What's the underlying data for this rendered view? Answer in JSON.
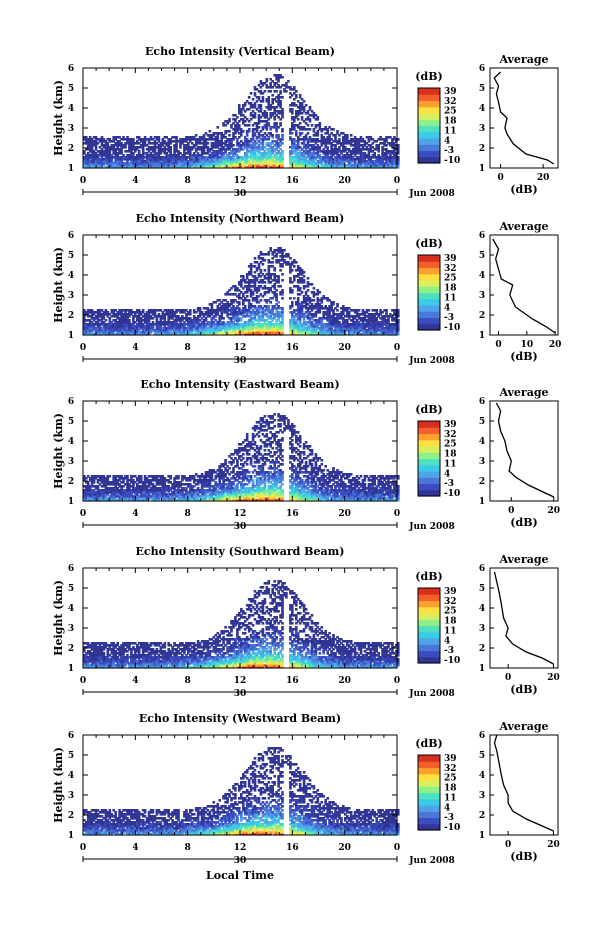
{
  "chart_data": [
    {
      "type": "heatmap",
      "title": "Echo Intensity (Vertical Beam)",
      "ylabel": "Height (km)",
      "ylim": [
        1,
        6
      ],
      "yticks": [
        "1",
        "2",
        "3",
        "4",
        "5",
        "6"
      ],
      "xlim": [
        0,
        24
      ],
      "xticks": [
        "0",
        "4",
        "8",
        "12",
        "16",
        "20",
        "0"
      ],
      "date_day": "30",
      "date_month": "Jun 2008",
      "colorbar_label": "(dB)",
      "colorbar_ticks": [
        "-10",
        "-3",
        "4",
        "11",
        "18",
        "25",
        "32",
        "39"
      ],
      "profile": {
        "title": "Average",
        "xlabel": "(dB)",
        "xticks": [
          "0",
          "20"
        ],
        "xlim": [
          -5,
          27
        ],
        "points": [
          [
            25,
            1.2
          ],
          [
            22,
            1.4
          ],
          [
            12,
            1.7
          ],
          [
            6,
            2.2
          ],
          [
            3,
            2.7
          ],
          [
            2,
            3.0
          ],
          [
            3,
            3.5
          ],
          [
            0,
            3.8
          ],
          [
            -1,
            4.3
          ],
          [
            -2,
            4.7
          ],
          [
            -1,
            5.1
          ],
          [
            -3,
            5.5
          ],
          [
            0,
            5.8
          ]
        ]
      }
    },
    {
      "type": "heatmap",
      "title": "Echo Intensity (Northward Beam)",
      "ylabel": "Height (km)",
      "ylim": [
        1,
        6
      ],
      "yticks": [
        "1",
        "2",
        "3",
        "4",
        "5",
        "6"
      ],
      "xlim": [
        0,
        24
      ],
      "xticks": [
        "0",
        "4",
        "8",
        "12",
        "16",
        "20",
        "0"
      ],
      "date_day": "30",
      "date_month": "Jun 2008",
      "colorbar_label": "(dB)",
      "colorbar_ticks": [
        "-10",
        "-3",
        "4",
        "11",
        "18",
        "25",
        "32",
        "39"
      ],
      "profile": {
        "title": "Average",
        "xlabel": "(dB)",
        "xticks": [
          "0",
          "10",
          "20"
        ],
        "xlim": [
          -3,
          21
        ],
        "points": [
          [
            20,
            1.1
          ],
          [
            17,
            1.4
          ],
          [
            12,
            1.8
          ],
          [
            6,
            2.4
          ],
          [
            4,
            3.0
          ],
          [
            5,
            3.5
          ],
          [
            1,
            3.8
          ],
          [
            0,
            4.3
          ],
          [
            -1,
            4.8
          ],
          [
            0,
            5.3
          ],
          [
            -2,
            5.8
          ]
        ]
      }
    },
    {
      "type": "heatmap",
      "title": "Echo Intensity (Eastward Beam)",
      "ylabel": "Height (km)",
      "ylim": [
        1,
        6
      ],
      "yticks": [
        "1",
        "2",
        "3",
        "4",
        "5",
        "6"
      ],
      "xlim": [
        0,
        24
      ],
      "xticks": [
        "0",
        "4",
        "8",
        "12",
        "16",
        "20",
        "0"
      ],
      "date_day": "30",
      "date_month": "Jun 2008",
      "colorbar_label": "(dB)",
      "colorbar_ticks": [
        "-10",
        "-3",
        "4",
        "11",
        "18",
        "25",
        "32",
        "39"
      ],
      "profile": {
        "title": "Average",
        "xlabel": "(dB)",
        "xticks": [
          "0",
          "20"
        ],
        "xlim": [
          -10,
          22
        ],
        "points": [
          [
            20,
            1.2
          ],
          [
            14,
            1.5
          ],
          [
            8,
            1.8
          ],
          [
            2,
            2.2
          ],
          [
            -1,
            2.5
          ],
          [
            0,
            3.0
          ],
          [
            -2,
            3.5
          ],
          [
            -3,
            4.0
          ],
          [
            -5,
            4.5
          ],
          [
            -6,
            5.0
          ],
          [
            -5,
            5.5
          ],
          [
            -7,
            5.9
          ]
        ]
      }
    },
    {
      "type": "heatmap",
      "title": "Echo Intensity (Southward Beam)",
      "ylabel": "Height (km)",
      "ylim": [
        1,
        6
      ],
      "yticks": [
        "1",
        "2",
        "3",
        "4",
        "5",
        "6"
      ],
      "xlim": [
        0,
        24
      ],
      "xticks": [
        "0",
        "4",
        "8",
        "12",
        "16",
        "20",
        "0"
      ],
      "date_day": "30",
      "date_month": "Jun 2008",
      "colorbar_label": "(dB)",
      "colorbar_ticks": [
        "-10",
        "-3",
        "4",
        "11",
        "18",
        "25",
        "32",
        "39"
      ],
      "profile": {
        "title": "Average",
        "xlabel": "(dB)",
        "xticks": [
          "0",
          "20"
        ],
        "xlim": [
          -8,
          22
        ],
        "points": [
          [
            20,
            1.2
          ],
          [
            15,
            1.5
          ],
          [
            8,
            1.8
          ],
          [
            2,
            2.2
          ],
          [
            -1,
            2.6
          ],
          [
            0,
            3.0
          ],
          [
            -2,
            3.5
          ],
          [
            -3,
            4.2
          ],
          [
            -4,
            4.8
          ],
          [
            -5,
            5.3
          ],
          [
            -6,
            5.8
          ]
        ]
      }
    },
    {
      "type": "heatmap",
      "title": "Echo Intensity (Westward Beam)",
      "ylabel": "Height (km)",
      "ylim": [
        1,
        6
      ],
      "yticks": [
        "1",
        "2",
        "3",
        "4",
        "5",
        "6"
      ],
      "xlim": [
        0,
        24
      ],
      "xticks": [
        "0",
        "4",
        "8",
        "12",
        "16",
        "20",
        "0"
      ],
      "date_day": "30",
      "date_month": "Jun 2008",
      "xlabel": "Local Time",
      "colorbar_label": "(dB)",
      "colorbar_ticks": [
        "-10",
        "-3",
        "4",
        "11",
        "18",
        "25",
        "32",
        "39"
      ],
      "profile": {
        "title": "Average",
        "xlabel": "(dB)",
        "xticks": [
          "0",
          "20"
        ],
        "xlim": [
          -8,
          22
        ],
        "points": [
          [
            20,
            1.2
          ],
          [
            14,
            1.5
          ],
          [
            8,
            1.8
          ],
          [
            2,
            2.2
          ],
          [
            0,
            2.6
          ],
          [
            0,
            3.0
          ],
          [
            -2,
            3.5
          ],
          [
            -3,
            4.0
          ],
          [
            -4,
            4.6
          ],
          [
            -5,
            5.2
          ],
          [
            -6,
            5.6
          ],
          [
            -5,
            6.0
          ]
        ]
      }
    }
  ],
  "colormap": [
    "#313695",
    "#3b4cc0",
    "#4a78d8",
    "#4fa3e8",
    "#3ccbe6",
    "#4fe0c0",
    "#8ff08a",
    "#d8f060",
    "#fde040",
    "#fca030",
    "#f4602a",
    "#d7301f"
  ]
}
